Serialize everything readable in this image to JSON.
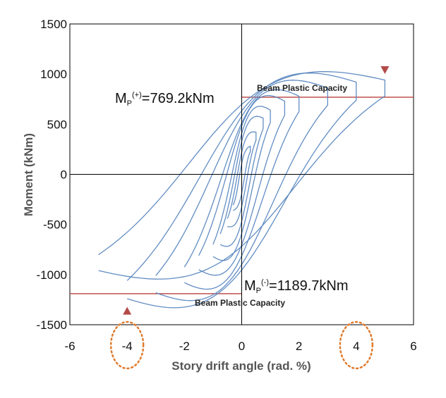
{
  "chart_data": {
    "type": "line",
    "title": "",
    "xlabel": "Story drift angle (rad. %)",
    "ylabel": "Moment (kNm)",
    "xlim": [
      -6,
      6
    ],
    "ylim": [
      -1500,
      1500
    ],
    "xticks": [
      -6,
      -4,
      -2,
      0,
      2,
      4,
      6
    ],
    "yticks": [
      -1500,
      -1000,
      -500,
      0,
      500,
      1000,
      1500
    ],
    "grid": false,
    "series": [
      {
        "values_description": "hysteresis cycles (digitized approx.)",
        "color": "#5a87c0",
        "cycles": [
          {
            "amp_pos": 0.3,
            "amp_neg": -0.3,
            "m_pos": 280,
            "m_neg": -360,
            "mid": 0
          },
          {
            "amp_pos": 0.5,
            "amp_neg": -0.5,
            "m_pos": 420,
            "m_neg": -520,
            "mid": 60
          },
          {
            "amp_pos": 0.75,
            "amp_neg": -0.75,
            "m_pos": 560,
            "m_neg": -700,
            "mid": 120
          },
          {
            "amp_pos": 1.0,
            "amp_neg": -1.0,
            "m_pos": 640,
            "m_neg": -820,
            "mid": 180
          },
          {
            "amp_pos": 1.5,
            "amp_neg": -1.5,
            "m_pos": 730,
            "m_neg": -950,
            "mid": 230
          },
          {
            "amp_pos": 2.0,
            "amp_neg": -2.0,
            "m_pos": 780,
            "m_neg": -1080,
            "mid": 260
          },
          {
            "amp_pos": 3.0,
            "amp_neg": -3.0,
            "m_pos": 860,
            "m_neg": -1180,
            "mid": 300
          },
          {
            "amp_pos": 4.0,
            "amp_neg": -4.0,
            "m_pos": 920,
            "m_neg": -1240,
            "mid": 330
          },
          {
            "amp_pos": 5.0,
            "amp_neg": -5.0,
            "m_pos": 940,
            "m_neg": -960,
            "mid": 300
          }
        ]
      }
    ],
    "reference_lines": [
      {
        "y": 769.2,
        "from_x": 0,
        "to_x": 6,
        "color": "#c0504d"
      },
      {
        "y": -1189.7,
        "from_x": -6,
        "to_x": 0,
        "color": "#c0504d"
      }
    ],
    "markers": [
      {
        "x": 5,
        "y": 1040,
        "shape": "triangle-down",
        "color": "#b34a48"
      },
      {
        "x": -4,
        "y": -1360,
        "shape": "triangle-up",
        "color": "#b34a48"
      }
    ],
    "highlighted_ticks": [
      -4,
      4
    ],
    "highlight_color": "#e07a2c"
  },
  "annotations": {
    "mp_pos_base": "M",
    "mp_pos_sub": "P",
    "mp_pos_sup": "(+)",
    "mp_pos_value": "=769.2kNm",
    "mp_neg_base": "M",
    "mp_neg_sub": "P",
    "mp_neg_sup": "(-)",
    "mp_neg_value": "=1189.7kNm",
    "beam_capacity_pos": "Beam Plastic Capacity",
    "beam_capacity_neg": "Beam Plastic Capacity"
  }
}
